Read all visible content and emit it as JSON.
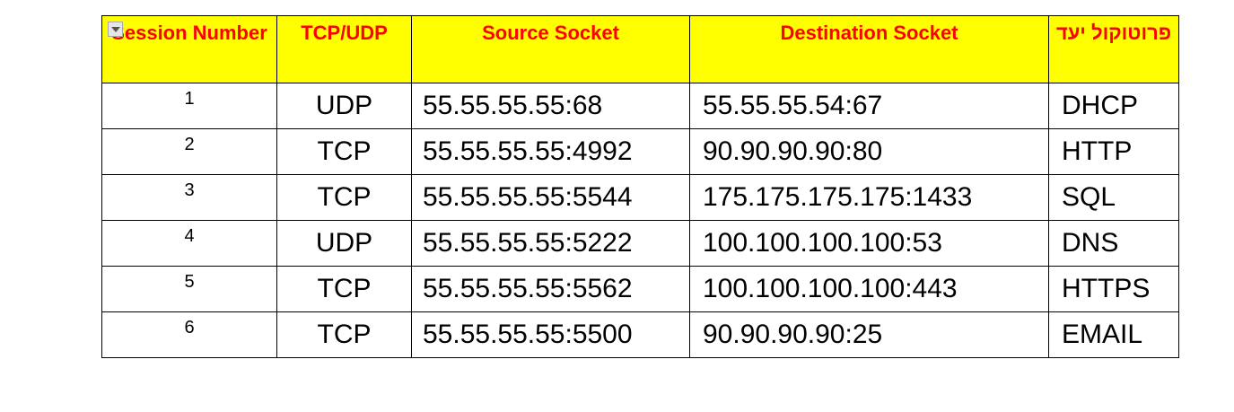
{
  "table": {
    "headers": {
      "session": "Session Number",
      "tcp_udp": "TCP/UDP",
      "source": "Source Socket",
      "destination": "Destination Socket",
      "app_protocol": "פרוטוקול יעד"
    },
    "rows": [
      {
        "num": "1",
        "proto": "UDP",
        "src": "55.55.55.55:68",
        "dst": "55.55.55.54:67",
        "app": "DHCP"
      },
      {
        "num": "2",
        "proto": "TCP",
        "src": "55.55.55.55:4992",
        "dst": "90.90.90.90:80",
        "app": "HTTP"
      },
      {
        "num": "3",
        "proto": "TCP",
        "src": "55.55.55.55:5544",
        "dst": "175.175.175.175:1433",
        "app": "SQL"
      },
      {
        "num": "4",
        "proto": "UDP",
        "src": "55.55.55.55:5222",
        "dst": "100.100.100.100:53",
        "app": "DNS"
      },
      {
        "num": "5",
        "proto": "TCP",
        "src": "55.55.55.55:5562",
        "dst": "100.100.100.100:443",
        "app": "HTTPS"
      },
      {
        "num": "6",
        "proto": "TCP",
        "src": "55.55.55.55:5500",
        "dst": "90.90.90.90:25",
        "app": "EMAIL"
      }
    ],
    "colors": {
      "header_bg": "#ffff00",
      "header_text": "#ff0000",
      "border": "#000000"
    },
    "filter_icon": "dropdown-arrow-icon"
  }
}
